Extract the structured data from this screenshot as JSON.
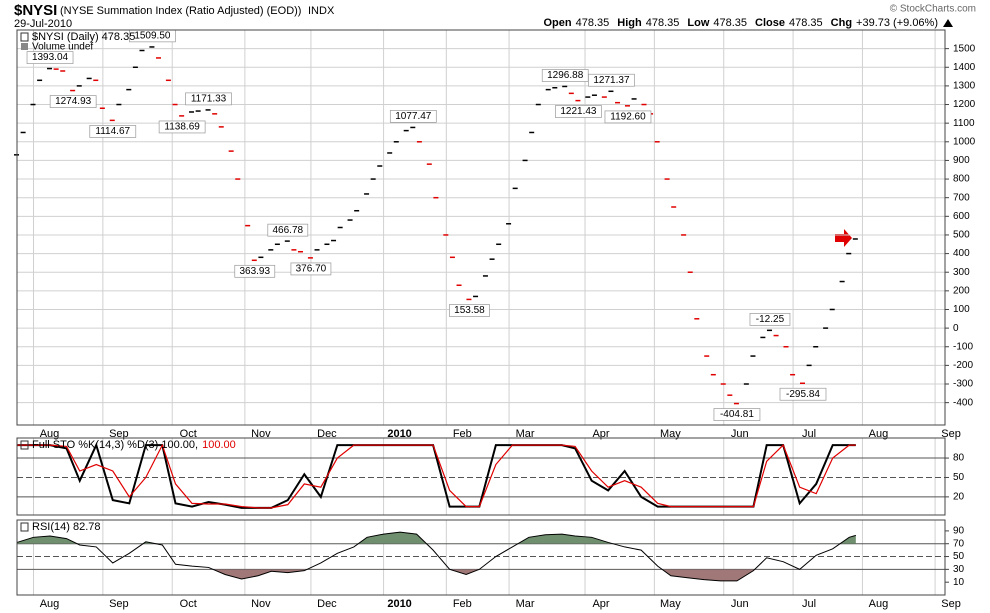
{
  "header": {
    "symbol": "$NYSI",
    "title": "(NYSE Summation Index (Ratio Adjusted) (EOD))",
    "exchange": "INDX",
    "date": "29-Jul-2010",
    "credit": "© StockCharts.com",
    "quote": [
      {
        "label": "Open",
        "value": 478.35
      },
      {
        "label": "High",
        "value": 478.35
      },
      {
        "label": "Low",
        "value": 478.35
      },
      {
        "label": "Close",
        "value": 478.35
      },
      {
        "label": "Chg",
        "value": "+39.73 (+9.06%)"
      }
    ]
  },
  "chart_data": [
    {
      "type": "scatter",
      "marker": "dash",
      "note": "Volume undef",
      "xlim": [
        0,
        281
      ],
      "ylim": [
        -520,
        1600
      ],
      "grid": true,
      "yticks": [
        -400,
        -300,
        -200,
        -100,
        0,
        100,
        200,
        300,
        400,
        500,
        600,
        700,
        800,
        900,
        1000,
        1100,
        1200,
        1300,
        1400,
        1500
      ],
      "xticks": [
        {
          "value": 5,
          "label": "Aug"
        },
        {
          "value": 26,
          "label": "Sep"
        },
        {
          "value": 47,
          "label": "Oct"
        },
        {
          "value": 69,
          "label": "Nov"
        },
        {
          "value": 89,
          "label": "Dec"
        },
        {
          "value": 111,
          "label": "2010",
          "bold": true
        },
        {
          "value": 130,
          "label": "Feb"
        },
        {
          "value": 149,
          "label": "Mar"
        },
        {
          "value": 172,
          "label": "Apr"
        },
        {
          "value": 193,
          "label": "May"
        },
        {
          "value": 214,
          "label": "Jun"
        },
        {
          "value": 235,
          "label": "Jul"
        },
        {
          "value": 256,
          "label": "Aug"
        },
        {
          "value": 278,
          "label": "Sep"
        }
      ],
      "series": [
        {
          "name": "$NYSI (Daily) 478.35",
          "color": "#000000",
          "down_color": "#e00000",
          "x": [
            0,
            2,
            5,
            7,
            10,
            12,
            14,
            17,
            19,
            22,
            24,
            26,
            29,
            31,
            34,
            36,
            38,
            41,
            43,
            46,
            48,
            50,
            53,
            55,
            58,
            60,
            62,
            65,
            67,
            70,
            72,
            74,
            77,
            79,
            82,
            84,
            86,
            89,
            91,
            94,
            96,
            98,
            101,
            103,
            106,
            108,
            110,
            113,
            115,
            118,
            120,
            122,
            125,
            127,
            130,
            132,
            134,
            137,
            139,
            142,
            144,
            146,
            149,
            151,
            154,
            156,
            158,
            161,
            163,
            166,
            168,
            170,
            173,
            175,
            178,
            180,
            182,
            185,
            187,
            190,
            192,
            194,
            197,
            199,
            202,
            204,
            206,
            209,
            211,
            214,
            216,
            218,
            221,
            223,
            226,
            228,
            230,
            233,
            235,
            238,
            240,
            242,
            245,
            247,
            250,
            252,
            254
          ],
          "values": [
            930,
            1050,
            1200,
            1330,
            1393,
            1390,
            1380,
            1275,
            1300,
            1340,
            1330,
            1180,
            1115,
            1200,
            1280,
            1400,
            1490,
            1509,
            1450,
            1330,
            1200,
            1139,
            1160,
            1165,
            1171,
            1150,
            1080,
            950,
            800,
            550,
            364,
            380,
            420,
            450,
            467,
            420,
            410,
            377,
            420,
            450,
            470,
            540,
            580,
            630,
            720,
            800,
            870,
            940,
            1000,
            1060,
            1077,
            1000,
            880,
            700,
            500,
            380,
            230,
            154,
            170,
            280,
            370,
            450,
            560,
            750,
            900,
            1050,
            1200,
            1280,
            1290,
            1297,
            1260,
            1221,
            1240,
            1250,
            1240,
            1271,
            1210,
            1193,
            1230,
            1200,
            1150,
            1000,
            800,
            650,
            500,
            300,
            50,
            -150,
            -250,
            -300,
            -360,
            -405,
            -300,
            -150,
            -50,
            -12,
            -40,
            -100,
            -250,
            -296,
            -200,
            -100,
            0,
            100,
            250,
            400,
            478.35
          ]
        }
      ],
      "annotations": [
        {
          "x": 10,
          "value": 1393.04,
          "label": "1393.04",
          "position": "above"
        },
        {
          "x": 17,
          "value": 1274.93,
          "label": "1274.93",
          "position": "below"
        },
        {
          "x": 29,
          "value": 1114.67,
          "label": "1114.67",
          "position": "below"
        },
        {
          "x": 41,
          "value": 1509.5,
          "label": "1509.50",
          "position": "above"
        },
        {
          "x": 50,
          "value": 1138.69,
          "label": "1138.69",
          "position": "below"
        },
        {
          "x": 58,
          "value": 1171.33,
          "label": "1171.33",
          "position": "above"
        },
        {
          "x": 72,
          "value": 363.93,
          "label": "363.93",
          "position": "below"
        },
        {
          "x": 82,
          "value": 466.78,
          "label": "466.78",
          "position": "above"
        },
        {
          "x": 89,
          "value": 376.7,
          "label": "376.70",
          "position": "below"
        },
        {
          "x": 120,
          "value": 1077.47,
          "label": "1077.47",
          "position": "above"
        },
        {
          "x": 137,
          "value": 153.58,
          "label": "153.58",
          "position": "below"
        },
        {
          "x": 166,
          "value": 1296.88,
          "label": "1296.88",
          "position": "above"
        },
        {
          "x": 170,
          "value": 1221.43,
          "label": "1221.43",
          "position": "below"
        },
        {
          "x": 180,
          "value": 1271.37,
          "label": "1271.37",
          "position": "above"
        },
        {
          "x": 185,
          "value": 1192.6,
          "label": "1192.60",
          "position": "below"
        },
        {
          "x": 218,
          "value": -404.81,
          "label": "-404.81",
          "position": "below"
        },
        {
          "x": 228,
          "value": -12.25,
          "label": "-12.25",
          "position": "above"
        },
        {
          "x": 238,
          "value": -295.84,
          "label": "-295.84",
          "position": "below"
        }
      ]
    },
    {
      "type": "line",
      "xlim": [
        0,
        281
      ],
      "ylim": [
        -8,
        111
      ],
      "yticks": [
        20,
        50,
        80
      ],
      "xticks": [
        5,
        26,
        47,
        69,
        89,
        111,
        130,
        149,
        172,
        193,
        214,
        235,
        256,
        278
      ],
      "hlines": [
        {
          "value": 80
        },
        {
          "value": 50,
          "dashed": true
        },
        {
          "value": 20
        }
      ],
      "x": [
        0,
        5,
        10,
        15,
        19,
        24,
        29,
        34,
        39,
        44,
        48,
        53,
        58,
        63,
        68,
        73,
        77,
        82,
        87,
        92,
        97,
        102,
        106,
        111,
        116,
        121,
        126,
        131,
        136,
        140,
        145,
        150,
        155,
        160,
        165,
        169,
        174,
        179,
        184,
        189,
        194,
        198,
        203,
        208,
        213,
        218,
        223,
        227,
        232,
        237,
        242,
        247,
        252,
        254
      ],
      "series": [
        {
          "name": "Full STO %K(14,3) %D(3) 100.00,",
          "color": "#000000",
          "width": 2,
          "values": [
            100,
            100,
            100,
            95,
            45,
            100,
            15,
            10,
            100,
            100,
            10,
            5,
            12,
            8,
            3,
            3,
            3,
            15,
            55,
            20,
            100,
            100,
            100,
            100,
            100,
            100,
            100,
            5,
            5,
            5,
            100,
            100,
            100,
            100,
            100,
            95,
            45,
            30,
            60,
            20,
            5,
            5,
            5,
            5,
            5,
            5,
            5,
            100,
            100,
            10,
            40,
            100,
            100,
            100
          ]
        },
        {
          "name": "100.00",
          "color": "#e00000",
          "width": 1.2,
          "values": [
            100,
            100,
            100,
            98,
            60,
            70,
            60,
            20,
            50,
            100,
            40,
            10,
            9,
            9,
            5,
            3,
            3,
            8,
            40,
            35,
            80,
            100,
            100,
            100,
            100,
            100,
            100,
            30,
            5,
            5,
            70,
            100,
            100,
            100,
            100,
            98,
            60,
            35,
            45,
            35,
            10,
            5,
            5,
            5,
            5,
            5,
            5,
            75,
            100,
            35,
            25,
            80,
            100,
            100
          ]
        }
      ]
    },
    {
      "type": "line",
      "xlim": [
        0,
        281
      ],
      "ylim": [
        -10,
        107
      ],
      "yticks": [
        10,
        30,
        50,
        70,
        90
      ],
      "xticks": [
        {
          "value": 5,
          "label": "Aug"
        },
        {
          "value": 26,
          "label": "Sep"
        },
        {
          "value": 47,
          "label": "Oct"
        },
        {
          "value": 69,
          "label": "Nov"
        },
        {
          "value": 89,
          "label": "Dec"
        },
        {
          "value": 111,
          "label": "2010",
          "bold": true
        },
        {
          "value": 130,
          "label": "Feb"
        },
        {
          "value": 149,
          "label": "Mar"
        },
        {
          "value": 172,
          "label": "Apr"
        },
        {
          "value": 193,
          "label": "May"
        },
        {
          "value": 214,
          "label": "Jun"
        },
        {
          "value": 235,
          "label": "Jul"
        },
        {
          "value": 256,
          "label": "Aug"
        },
        {
          "value": 278,
          "label": "Sep"
        }
      ],
      "hlines": [
        {
          "value": 70
        },
        {
          "value": 50,
          "dashed": true
        },
        {
          "value": 30
        }
      ],
      "bands": [
        {
          "value": 70,
          "side": "above",
          "color": "#6f8f6f"
        },
        {
          "value": 30,
          "side": "below",
          "color": "#a07878"
        }
      ],
      "x": [
        0,
        5,
        10,
        15,
        19,
        24,
        29,
        34,
        39,
        44,
        48,
        53,
        58,
        63,
        68,
        73,
        77,
        82,
        87,
        92,
        97,
        102,
        106,
        111,
        116,
        121,
        126,
        131,
        136,
        140,
        145,
        150,
        155,
        160,
        165,
        169,
        174,
        179,
        184,
        189,
        194,
        198,
        203,
        208,
        213,
        218,
        223,
        227,
        232,
        237,
        242,
        247,
        252,
        254
      ],
      "series": [
        {
          "name": "RSI(14) 82.78",
          "color": "#000000",
          "width": 1,
          "values": [
            72,
            80,
            82,
            78,
            68,
            65,
            40,
            55,
            73,
            68,
            38,
            35,
            33,
            22,
            15,
            20,
            27,
            25,
            28,
            40,
            55,
            65,
            80,
            85,
            88,
            85,
            60,
            30,
            22,
            30,
            50,
            65,
            80,
            84,
            85,
            82,
            80,
            72,
            65,
            60,
            35,
            20,
            17,
            14,
            12,
            12,
            28,
            48,
            42,
            30,
            52,
            62,
            80,
            83
          ]
        }
      ]
    }
  ]
}
